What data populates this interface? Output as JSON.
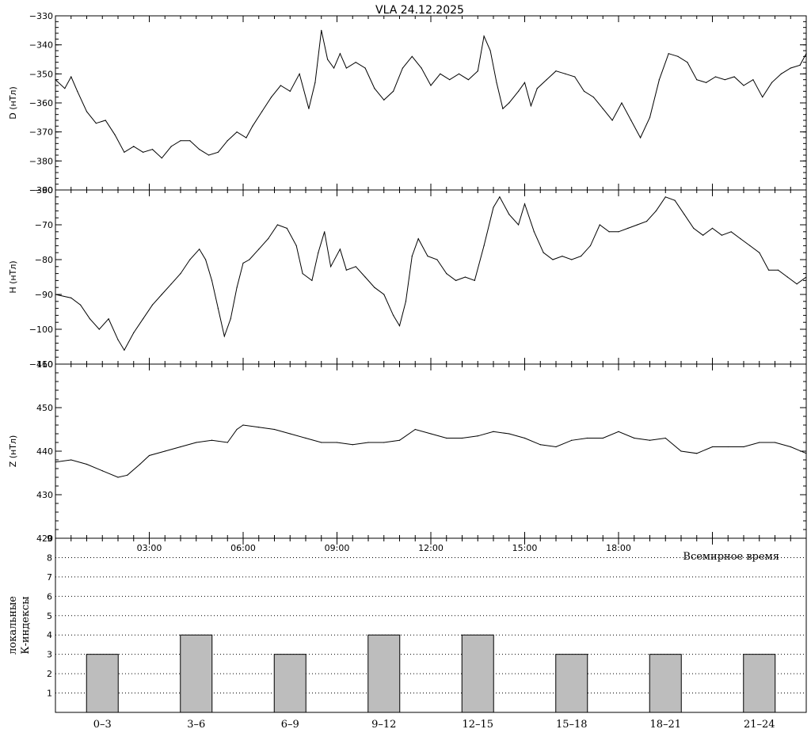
{
  "title": "VLA   24.12.2025",
  "xlabel": "Всемирное время",
  "time_ticks": [
    "03:00",
    "06:00",
    "09:00",
    "12:00",
    "15:00",
    "18:00"
  ],
  "colors": {
    "line": "#000000",
    "bar_fill": "#bdbdbd",
    "grid": "#000000"
  },
  "chart_data": [
    {
      "type": "line",
      "name": "D",
      "ylabel": "D (нТл)",
      "ylim": [
        -390,
        -330
      ],
      "yticks": [
        -330,
        -340,
        -350,
        -360,
        -370,
        -380,
        -390
      ],
      "x_unit": "hours UT",
      "xlim": [
        0,
        24
      ],
      "points": [
        [
          0,
          -352
        ],
        [
          0.3,
          -355
        ],
        [
          0.5,
          -351
        ],
        [
          0.7,
          -356
        ],
        [
          1.0,
          -363
        ],
        [
          1.3,
          -367
        ],
        [
          1.6,
          -366
        ],
        [
          1.9,
          -371
        ],
        [
          2.2,
          -377
        ],
        [
          2.5,
          -375
        ],
        [
          2.8,
          -377
        ],
        [
          3.1,
          -376
        ],
        [
          3.4,
          -379
        ],
        [
          3.7,
          -375
        ],
        [
          4.0,
          -373
        ],
        [
          4.3,
          -373
        ],
        [
          4.6,
          -376
        ],
        [
          4.9,
          -378
        ],
        [
          5.2,
          -377
        ],
        [
          5.5,
          -373
        ],
        [
          5.8,
          -370
        ],
        [
          6.1,
          -372
        ],
        [
          6.3,
          -368
        ],
        [
          6.6,
          -363
        ],
        [
          6.9,
          -358
        ],
        [
          7.2,
          -354
        ],
        [
          7.5,
          -356
        ],
        [
          7.8,
          -350
        ],
        [
          8.1,
          -362
        ],
        [
          8.3,
          -353
        ],
        [
          8.5,
          -335
        ],
        [
          8.7,
          -345
        ],
        [
          8.9,
          -348
        ],
        [
          9.1,
          -343
        ],
        [
          9.3,
          -348
        ],
        [
          9.6,
          -346
        ],
        [
          9.9,
          -348
        ],
        [
          10.2,
          -355
        ],
        [
          10.5,
          -359
        ],
        [
          10.8,
          -356
        ],
        [
          11.1,
          -348
        ],
        [
          11.4,
          -344
        ],
        [
          11.7,
          -348
        ],
        [
          12.0,
          -354
        ],
        [
          12.3,
          -350
        ],
        [
          12.6,
          -352
        ],
        [
          12.9,
          -350
        ],
        [
          13.2,
          -352
        ],
        [
          13.5,
          -349
        ],
        [
          13.7,
          -337
        ],
        [
          13.9,
          -342
        ],
        [
          14.1,
          -353
        ],
        [
          14.3,
          -362
        ],
        [
          14.5,
          -360
        ],
        [
          14.8,
          -356
        ],
        [
          15.0,
          -353
        ],
        [
          15.2,
          -361
        ],
        [
          15.4,
          -355
        ],
        [
          15.7,
          -352
        ],
        [
          16.0,
          -349
        ],
        [
          16.3,
          -350
        ],
        [
          16.6,
          -351
        ],
        [
          16.9,
          -356
        ],
        [
          17.2,
          -358
        ],
        [
          17.5,
          -362
        ],
        [
          17.8,
          -366
        ],
        [
          18.1,
          -360
        ],
        [
          18.4,
          -366
        ],
        [
          18.7,
          -372
        ],
        [
          19.0,
          -365
        ],
        [
          19.3,
          -352
        ],
        [
          19.6,
          -343
        ],
        [
          19.9,
          -344
        ],
        [
          20.2,
          -346
        ],
        [
          20.5,
          -352
        ],
        [
          20.8,
          -353
        ],
        [
          21.1,
          -351
        ],
        [
          21.4,
          -352
        ],
        [
          21.7,
          -351
        ],
        [
          22.0,
          -354
        ],
        [
          22.3,
          -352
        ],
        [
          22.6,
          -358
        ],
        [
          22.9,
          -353
        ],
        [
          23.2,
          -350
        ],
        [
          23.5,
          -348
        ],
        [
          23.8,
          -347
        ],
        [
          24.0,
          -343
        ]
      ]
    },
    {
      "type": "line",
      "name": "H",
      "ylabel": "H (нТл)",
      "ylim": [
        -110,
        -60
      ],
      "yticks": [
        -60,
        -70,
        -80,
        -90,
        -100,
        -110
      ],
      "x_unit": "hours UT",
      "xlim": [
        0,
        24
      ],
      "points": [
        [
          0,
          -90
        ],
        [
          0.5,
          -91
        ],
        [
          0.8,
          -93
        ],
        [
          1.1,
          -97
        ],
        [
          1.4,
          -100
        ],
        [
          1.7,
          -97
        ],
        [
          2.0,
          -103
        ],
        [
          2.2,
          -106
        ],
        [
          2.5,
          -101
        ],
        [
          2.8,
          -97
        ],
        [
          3.1,
          -93
        ],
        [
          3.4,
          -90
        ],
        [
          3.7,
          -87
        ],
        [
          4.0,
          -84
        ],
        [
          4.3,
          -80
        ],
        [
          4.6,
          -77
        ],
        [
          4.8,
          -80
        ],
        [
          5.0,
          -86
        ],
        [
          5.2,
          -94
        ],
        [
          5.4,
          -102
        ],
        [
          5.6,
          -97
        ],
        [
          5.8,
          -88
        ],
        [
          6.0,
          -81
        ],
        [
          6.2,
          -80
        ],
        [
          6.5,
          -77
        ],
        [
          6.8,
          -74
        ],
        [
          7.1,
          -70
        ],
        [
          7.4,
          -71
        ],
        [
          7.7,
          -76
        ],
        [
          7.9,
          -84
        ],
        [
          8.2,
          -86
        ],
        [
          8.4,
          -78
        ],
        [
          8.6,
          -72
        ],
        [
          8.8,
          -82
        ],
        [
          9.1,
          -77
        ],
        [
          9.3,
          -83
        ],
        [
          9.6,
          -82
        ],
        [
          9.9,
          -85
        ],
        [
          10.2,
          -88
        ],
        [
          10.5,
          -90
        ],
        [
          10.8,
          -96
        ],
        [
          11.0,
          -99
        ],
        [
          11.2,
          -92
        ],
        [
          11.4,
          -79
        ],
        [
          11.6,
          -74
        ],
        [
          11.9,
          -79
        ],
        [
          12.2,
          -80
        ],
        [
          12.5,
          -84
        ],
        [
          12.8,
          -86
        ],
        [
          13.1,
          -85
        ],
        [
          13.4,
          -86
        ],
        [
          13.7,
          -76
        ],
        [
          14.0,
          -65
        ],
        [
          14.2,
          -62
        ],
        [
          14.5,
          -67
        ],
        [
          14.8,
          -70
        ],
        [
          15.0,
          -64
        ],
        [
          15.3,
          -72
        ],
        [
          15.6,
          -78
        ],
        [
          15.9,
          -80
        ],
        [
          16.2,
          -79
        ],
        [
          16.5,
          -80
        ],
        [
          16.8,
          -79
        ],
        [
          17.1,
          -76
        ],
        [
          17.4,
          -70
        ],
        [
          17.7,
          -72
        ],
        [
          18.0,
          -72
        ],
        [
          18.3,
          -71
        ],
        [
          18.6,
          -70
        ],
        [
          18.9,
          -69
        ],
        [
          19.2,
          -66
        ],
        [
          19.5,
          -62
        ],
        [
          19.8,
          -63
        ],
        [
          20.1,
          -67
        ],
        [
          20.4,
          -71
        ],
        [
          20.7,
          -73
        ],
        [
          21.0,
          -71
        ],
        [
          21.3,
          -73
        ],
        [
          21.6,
          -72
        ],
        [
          21.9,
          -74
        ],
        [
          22.2,
          -76
        ],
        [
          22.5,
          -78
        ],
        [
          22.8,
          -83
        ],
        [
          23.1,
          -83
        ],
        [
          23.4,
          -85
        ],
        [
          23.7,
          -87
        ],
        [
          24.0,
          -85
        ]
      ]
    },
    {
      "type": "line",
      "name": "Z",
      "ylabel": "Z (нТл)",
      "ylim": [
        420,
        460
      ],
      "yticks": [
        460,
        450,
        440,
        430,
        420
      ],
      "x_unit": "hours UT",
      "xlim": [
        0,
        24
      ],
      "points": [
        [
          0,
          437.5
        ],
        [
          0.5,
          438
        ],
        [
          1.0,
          437
        ],
        [
          1.5,
          435.5
        ],
        [
          2.0,
          434
        ],
        [
          2.3,
          434.5
        ],
        [
          2.7,
          437
        ],
        [
          3.0,
          439
        ],
        [
          3.5,
          440
        ],
        [
          4.0,
          441
        ],
        [
          4.5,
          442
        ],
        [
          5.0,
          442.5
        ],
        [
          5.5,
          442
        ],
        [
          5.8,
          445
        ],
        [
          6.0,
          446
        ],
        [
          6.5,
          445.5
        ],
        [
          7.0,
          445
        ],
        [
          7.5,
          444
        ],
        [
          8.0,
          443
        ],
        [
          8.5,
          442
        ],
        [
          9.0,
          442
        ],
        [
          9.5,
          441.5
        ],
        [
          10.0,
          442
        ],
        [
          10.5,
          442
        ],
        [
          11.0,
          442.5
        ],
        [
          11.5,
          445
        ],
        [
          12.0,
          444
        ],
        [
          12.5,
          443
        ],
        [
          13.0,
          443
        ],
        [
          13.5,
          443.5
        ],
        [
          14.0,
          444.5
        ],
        [
          14.5,
          444
        ],
        [
          15.0,
          443
        ],
        [
          15.5,
          441.5
        ],
        [
          16.0,
          441
        ],
        [
          16.5,
          442.5
        ],
        [
          17.0,
          443
        ],
        [
          17.5,
          443
        ],
        [
          18.0,
          444.5
        ],
        [
          18.5,
          443
        ],
        [
          19.0,
          442.5
        ],
        [
          19.5,
          443
        ],
        [
          20.0,
          440
        ],
        [
          20.5,
          439.5
        ],
        [
          21.0,
          441
        ],
        [
          21.5,
          441
        ],
        [
          22.0,
          441
        ],
        [
          22.5,
          442
        ],
        [
          23.0,
          442
        ],
        [
          23.5,
          441
        ],
        [
          24.0,
          439.5
        ]
      ]
    },
    {
      "type": "bar",
      "name": "K",
      "ylabel": "локальные\nК-индексы",
      "ylim": [
        0,
        9
      ],
      "yticks": [
        1,
        2,
        3,
        4,
        5,
        6,
        7,
        8,
        9
      ],
      "categories": [
        "0–3",
        "3–6",
        "6–9",
        "9–12",
        "12–15",
        "15–18",
        "18–21",
        "21–24"
      ],
      "values": [
        3,
        4,
        3,
        4,
        4,
        3,
        3,
        3
      ]
    }
  ]
}
